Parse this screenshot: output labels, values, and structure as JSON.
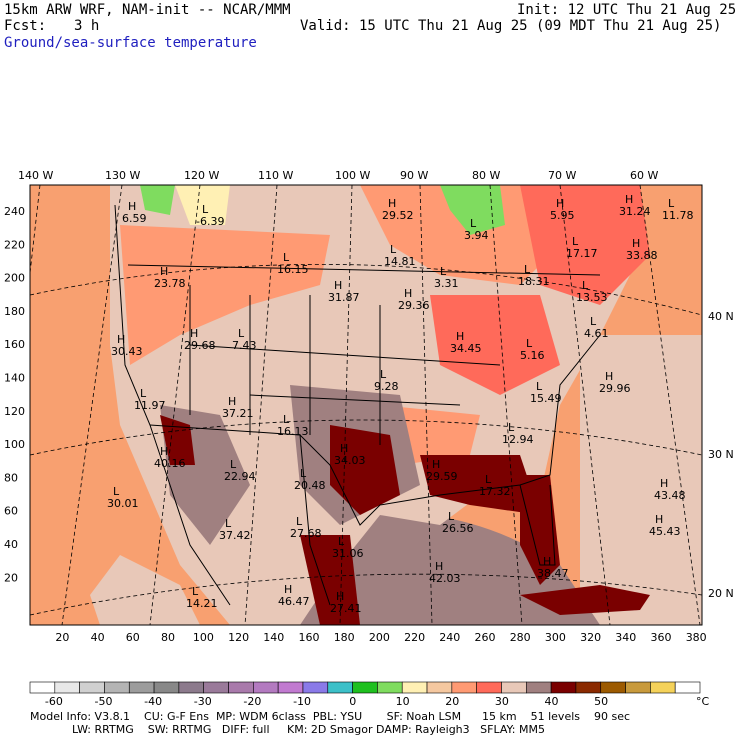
{
  "header": {
    "model_line": "15km ARW WRF, NAM-init -- NCAR/MMM",
    "init_line": "Init: 12 UTC Thu 21 Aug 25",
    "fcst_label": "Fcst:",
    "fcst_value": "3 h",
    "valid_line": "Valid: 15 UTC Thu 21 Aug 25 (09 MDT Thu 21 Aug 25)",
    "field_title": "Ground/sea-surface temperature"
  },
  "map": {
    "top_lon_labels": [
      "140 W",
      "130 W",
      "120 W",
      "110 W",
      "100 W",
      "90 W",
      "80 W",
      "70 W",
      "60 W"
    ],
    "left_grid_labels": [
      "240",
      "220",
      "200",
      "180",
      "160",
      "140",
      "120",
      "100",
      "80",
      "60",
      "40",
      "20"
    ],
    "bottom_grid_labels": [
      "20",
      "40",
      "60",
      "80",
      "100",
      "120",
      "140",
      "160",
      "180",
      "200",
      "220",
      "240",
      "260",
      "280",
      "300",
      "320",
      "340",
      "360",
      "380"
    ],
    "right_lat_labels": [
      "40 N",
      "30 N",
      "20 N"
    ],
    "extrema": [
      {
        "letter": "H",
        "value": "6.59"
      },
      {
        "letter": "L",
        "value": "-6.39"
      },
      {
        "letter": "H",
        "value": "29.52"
      },
      {
        "letter": "L",
        "value": "3.94"
      },
      {
        "letter": "H",
        "value": "5.95"
      },
      {
        "letter": "H",
        "value": "31.24"
      },
      {
        "letter": "L",
        "value": "11.78"
      },
      {
        "letter": "L",
        "value": "16.15"
      },
      {
        "letter": "L",
        "value": "14.81"
      },
      {
        "letter": "L",
        "value": "17.17"
      },
      {
        "letter": "H",
        "value": "33.88"
      },
      {
        "letter": "H",
        "value": "23.78"
      },
      {
        "letter": "H",
        "value": "31.87"
      },
      {
        "letter": "L",
        "value": "3.31"
      },
      {
        "letter": "L",
        "value": "18.31"
      },
      {
        "letter": "L",
        "value": "13.53"
      },
      {
        "letter": "H",
        "value": "29.36"
      },
      {
        "letter": "L",
        "value": "4.61"
      },
      {
        "letter": "H",
        "value": "30.43"
      },
      {
        "letter": "H",
        "value": "29.68"
      },
      {
        "letter": "L",
        "value": "7.43"
      },
      {
        "letter": "H",
        "value": "34.45"
      },
      {
        "letter": "L",
        "value": "5.16"
      },
      {
        "letter": "L",
        "value": "9.28"
      },
      {
        "letter": "H",
        "value": "29.96"
      },
      {
        "letter": "L",
        "value": "11.97"
      },
      {
        "letter": "H",
        "value": "37.21"
      },
      {
        "letter": "L",
        "value": "15.49"
      },
      {
        "letter": "L",
        "value": "16.13"
      },
      {
        "letter": "L",
        "value": "12.94"
      },
      {
        "letter": "H",
        "value": "40.16"
      },
      {
        "letter": "H",
        "value": "34.03"
      },
      {
        "letter": "L",
        "value": "22.94"
      },
      {
        "letter": "L",
        "value": "20.48"
      },
      {
        "letter": "H",
        "value": "29.59"
      },
      {
        "letter": "L",
        "value": "17.32"
      },
      {
        "letter": "L",
        "value": "30.01"
      },
      {
        "letter": "H",
        "value": "43.48"
      },
      {
        "letter": "L",
        "value": "37.42"
      },
      {
        "letter": "L",
        "value": "27.68"
      },
      {
        "letter": "L",
        "value": "26.56"
      },
      {
        "letter": "H",
        "value": "45.43"
      },
      {
        "letter": "L",
        "value": "31.06"
      },
      {
        "letter": "H",
        "value": "42.03"
      },
      {
        "letter": "H",
        "value": "38.47"
      },
      {
        "letter": "L",
        "value": "14.21"
      },
      {
        "letter": "H",
        "value": "46.47"
      },
      {
        "letter": "H",
        "value": "27.41"
      }
    ]
  },
  "colorbar": {
    "unit": "°C",
    "tick_labels": [
      "-60",
      "-50",
      "-40",
      "-30",
      "-20",
      "-10",
      "0",
      "10",
      "20",
      "30",
      "40",
      "50"
    ],
    "colors": [
      "#ffffff",
      "#e8e8e8",
      "#d0d0d0",
      "#b4b4b4",
      "#9c9c9c",
      "#888888",
      "#8c7a8c",
      "#9a7a9a",
      "#a97aab",
      "#b37ac0",
      "#c17ad0",
      "#8a7ae8",
      "#3cc0c8",
      "#1fc01f",
      "#7fdc5f",
      "#fff0b4",
      "#f5c8a0",
      "#ff9a73",
      "#ff6a5a",
      "#e8c8b8",
      "#a08080",
      "#7a0000",
      "#8a2a00",
      "#9c5a00",
      "#c89a3c",
      "#f5d25a",
      "#ffffff"
    ]
  },
  "footer": {
    "line1": "Model Info: V3.8.1    CU: G-F Ens  MP: WDM 6class  PBL: YSU       SF: Noah LSM      15 km    51 levels    90 sec",
    "line2": "            LW: RRTMG    SW: RRTMG   DIFF: full     KM: 2D Smagor DAMP: Rayleigh3   SFLAY: MM5"
  }
}
